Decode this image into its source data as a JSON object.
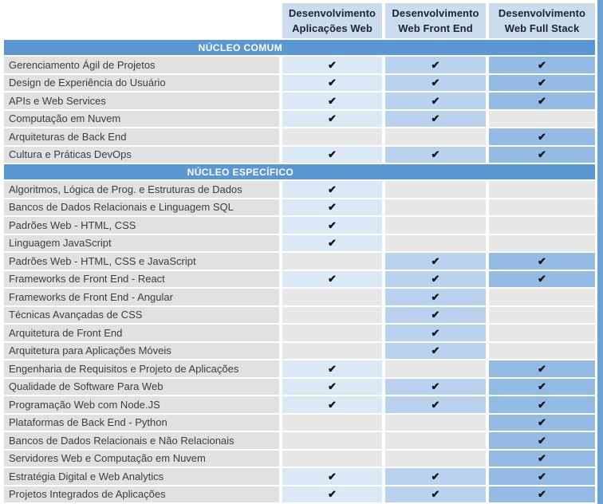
{
  "colors": {
    "header_cell_bg": "#cbdcef",
    "header_text": "#1b2433",
    "section_bar_bg": "#5b97d3",
    "section_bar_text": "#ffffff",
    "label_bg": "#e1e1e1",
    "label_text": "#3d3d3d",
    "empty_cell_bg": "#e7e7e7",
    "check_color": "#141414",
    "col_checked_bg": [
      "#dbe9f6",
      "#b9d3ee",
      "#93bbe3"
    ],
    "right_strip": "#6aa1d6"
  },
  "icons": {
    "check_glyph": "✔"
  },
  "table": {
    "program_columns": [
      {
        "line1": "Desenvolvimento",
        "line2": "Aplicações Web"
      },
      {
        "line1": "Desenvolvimento",
        "line2": "Web Front End"
      },
      {
        "line1": "Desenvolvimento",
        "line2": "Web Full Stack"
      }
    ],
    "sections": [
      {
        "title": "NÚCLEO COMUM",
        "rows": [
          {
            "label": "Gerenciamento Ágil de Projetos",
            "checks": [
              true,
              true,
              true
            ]
          },
          {
            "label": "Design de Experiência do Usuário",
            "checks": [
              true,
              true,
              true
            ]
          },
          {
            "label": "APIs e Web Services",
            "checks": [
              true,
              true,
              true
            ]
          },
          {
            "label": "Computação em Nuvem",
            "checks": [
              true,
              true,
              false
            ]
          },
          {
            "label": "Arquiteturas de Back End",
            "checks": [
              false,
              false,
              true
            ]
          },
          {
            "label": "Cultura e Práticas DevOps",
            "checks": [
              true,
              true,
              true
            ]
          }
        ]
      },
      {
        "title": "NÚCLEO ESPECÍFICO",
        "rows": [
          {
            "label": "Algoritmos, Lógica de Prog. e Estruturas de Dados",
            "checks": [
              true,
              false,
              false
            ]
          },
          {
            "label": "Bancos de Dados Relacionais e Linguagem SQL",
            "checks": [
              true,
              false,
              false
            ]
          },
          {
            "label": "Padrões Web - HTML, CSS",
            "checks": [
              true,
              false,
              false
            ]
          },
          {
            "label": "Linguagem JavaScript",
            "checks": [
              true,
              false,
              false
            ]
          },
          {
            "label": "Padrões Web - HTML, CSS e JavaScript",
            "checks": [
              false,
              true,
              true
            ]
          },
          {
            "label": "Frameworks de Front End - React",
            "checks": [
              true,
              true,
              true
            ]
          },
          {
            "label": "Frameworks de Front End - Angular",
            "checks": [
              false,
              true,
              false
            ]
          },
          {
            "label": "Técnicas Avançadas de CSS",
            "checks": [
              false,
              true,
              false
            ]
          },
          {
            "label": "Arquitetura de Front End",
            "checks": [
              false,
              true,
              false
            ]
          },
          {
            "label": "Arquitetura para Aplicações Móveis",
            "checks": [
              false,
              true,
              false
            ]
          },
          {
            "label": "Engenharia de Requisitos e Projeto de Aplicações",
            "checks": [
              true,
              false,
              true
            ]
          },
          {
            "label": "Qualidade de Software Para Web",
            "checks": [
              true,
              true,
              true
            ]
          },
          {
            "label": "Programação Web com Node.JS",
            "checks": [
              true,
              true,
              true
            ]
          },
          {
            "label": "Plataformas de Back End - Python",
            "checks": [
              false,
              false,
              true
            ]
          },
          {
            "label": "Bancos de Dados Relacionais e Não Relacionais",
            "checks": [
              false,
              false,
              true
            ]
          },
          {
            "label": "Servidores Web e Computação em Nuvem",
            "checks": [
              false,
              false,
              true
            ]
          },
          {
            "label": "Estratégia Digital e Web Analytics",
            "checks": [
              true,
              true,
              true
            ]
          },
          {
            "label": "Projetos Integrados de Aplicações",
            "checks": [
              true,
              true,
              true
            ]
          }
        ]
      }
    ]
  }
}
